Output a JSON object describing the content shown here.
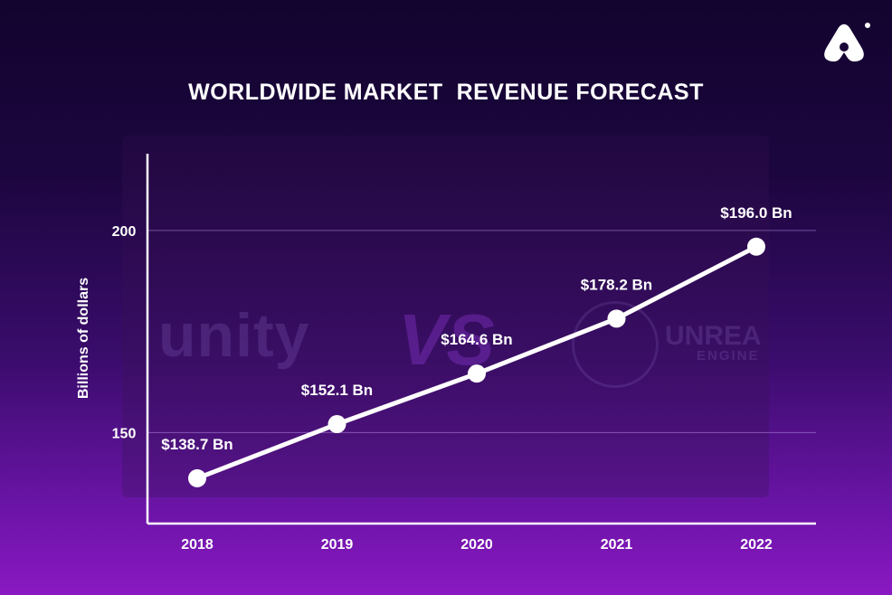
{
  "chart_data": {
    "type": "line",
    "title": "WORLDWIDE MARKET  REVENUE FORECAST",
    "xlabel": "",
    "ylabel": "Billions of dollars",
    "categories": [
      "2018",
      "2019",
      "2020",
      "2021",
      "2022"
    ],
    "series": [
      {
        "values": [
          138.7,
          152.1,
          164.6,
          178.2,
          196.0
        ]
      }
    ],
    "data_labels": [
      "$138.7 Bn",
      "$152.1 Bn",
      "$164.6 Bn",
      "$178.2 Bn",
      "$196.0 Bn"
    ],
    "yticks": [
      150,
      200
    ],
    "ylim": [
      127.5,
      219
    ],
    "grid": "horizontal",
    "line_color": "#ffffff",
    "marker_color": "#ffffff"
  },
  "background": {
    "text_unity": "unity",
    "text_vs": "VS",
    "text_unreal": "UNREA",
    "text_engine": "ENGINE"
  },
  "colors": {
    "background_top": "#12042e",
    "background_bottom": "#8a18c2",
    "text": "#ffffff"
  },
  "icons": {
    "brand": "brand-logo-icon"
  }
}
